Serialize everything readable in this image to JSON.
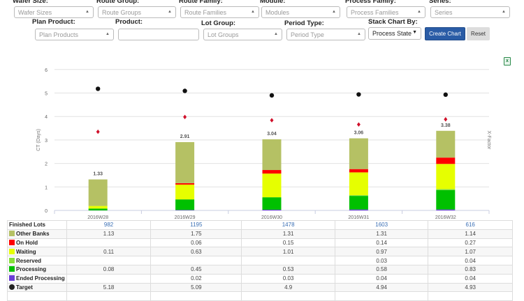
{
  "filters": {
    "row1": [
      {
        "label": "Wafer Size:",
        "placeholder": "Wafer Sizes"
      },
      {
        "label": "Route Group:",
        "placeholder": "Route Groups"
      },
      {
        "label": "Route Family:",
        "placeholder": "Route Families"
      },
      {
        "label": "Module:",
        "placeholder": "Modules"
      },
      {
        "label": "Process Family:",
        "placeholder": "Process Families"
      },
      {
        "label": "Series:",
        "placeholder": "Series"
      }
    ],
    "plan_product": {
      "label": "Plan Product:",
      "placeholder": "Plan Products"
    },
    "product": {
      "label": "Product:",
      "value": ""
    },
    "lot_group": {
      "label": "Lot Group:",
      "placeholder": "Lot Groups"
    },
    "period_type": {
      "label": "Period Type:",
      "placeholder": "Period Type"
    },
    "stack_by": {
      "label": "Stack Chart By:",
      "value": "Process State"
    },
    "create_label": "Create Chart",
    "reset_label": "Reset"
  },
  "export_icon": "excel-export-icon",
  "chart_data": {
    "type": "bar",
    "stacked": true,
    "categories": [
      "2016W28",
      "2016W29",
      "2016W30",
      "2016W31",
      "2016W32"
    ],
    "ylabel": "CT (Days)",
    "y2label": "X-Factor",
    "ylim": [
      0,
      6
    ],
    "yticks": [
      "0",
      "1",
      "2",
      "3",
      "4",
      "5",
      "6"
    ],
    "grid": true,
    "totals": [
      "1.33",
      "2.91",
      "3.04",
      "3.06",
      "3.38"
    ],
    "series": [
      {
        "name": "Ended Processing",
        "color": "#6a3dd6",
        "values": [
          0,
          0.02,
          0.03,
          0.04,
          0.04
        ]
      },
      {
        "name": "Processing",
        "color": "#00c000",
        "values": [
          0.08,
          0.45,
          0.53,
          0.58,
          0.83
        ]
      },
      {
        "name": "Reserved",
        "color": "#88e03a",
        "values": [
          0,
          0,
          0,
          0.03,
          0.04
        ]
      },
      {
        "name": "Waiting",
        "color": "#e6ff00",
        "values": [
          0.11,
          0.63,
          1.01,
          0.97,
          1.07
        ]
      },
      {
        "name": "On Hold",
        "color": "#ff0000",
        "values": [
          0,
          0.06,
          0.15,
          0.14,
          0.27
        ]
      },
      {
        "name": "Other Banks",
        "color": "#b5c164",
        "values": [
          1.13,
          1.75,
          1.31,
          1.31,
          1.14
        ]
      }
    ],
    "target": {
      "name": "Target",
      "color": "#111111",
      "values": [
        5.18,
        5.09,
        4.9,
        4.94,
        4.93
      ]
    },
    "x_factor": {
      "color": "#d0102a",
      "values": [
        3.35,
        3.98,
        3.84,
        3.66,
        3.88
      ]
    }
  },
  "table": {
    "rows": [
      {
        "label": "Finished Lots",
        "swatch": null,
        "values": [
          "982",
          "1195",
          "1478",
          "1603",
          "616"
        ],
        "link": true
      },
      {
        "label": "Other Banks",
        "swatch": "#b5c164",
        "values": [
          "1.13",
          "1.75",
          "1.31",
          "1.31",
          "1.14"
        ]
      },
      {
        "label": "On Hold",
        "swatch": "#ff0000",
        "values": [
          "",
          "0.06",
          "0.15",
          "0.14",
          "0.27"
        ]
      },
      {
        "label": "Waiting",
        "swatch": "#e6ff00",
        "values": [
          "0.11",
          "0.63",
          "1.01",
          "0.97",
          "1.07"
        ]
      },
      {
        "label": "Reserved",
        "swatch": "#88e03a",
        "values": [
          "",
          "",
          "",
          "0.03",
          "0.04"
        ]
      },
      {
        "label": "Processing",
        "swatch": "#00c000",
        "values": [
          "0.08",
          "0.45",
          "0.53",
          "0.58",
          "0.83"
        ]
      },
      {
        "label": "Ended Processing",
        "swatch": "#6a3dd6",
        "values": [
          "",
          "0.02",
          "0.03",
          "0.04",
          "0.04"
        ]
      },
      {
        "label": "Target",
        "swatch": "circle",
        "values": [
          "5.18",
          "5.09",
          "4.9",
          "4.94",
          "4.93"
        ]
      }
    ]
  }
}
